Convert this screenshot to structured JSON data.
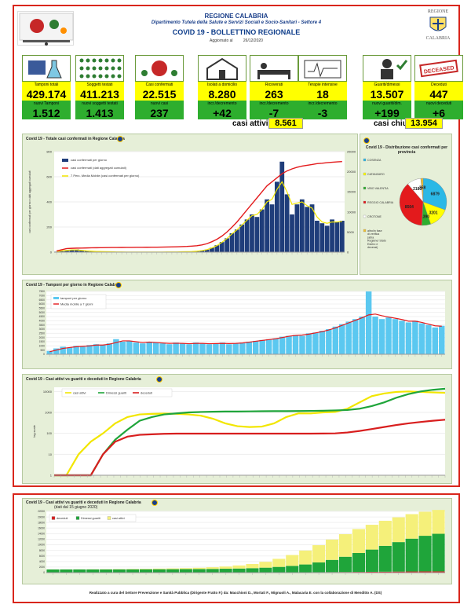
{
  "header": {
    "region": "REGIONE CALABRIA",
    "department": "Dipartimento Tutela della Salute e Servizi Sociali e Socio-Sanitari - Settore 4",
    "bulletin": "COVID 19 - BOLLETTINO REGIONALE",
    "updated_label": "Aggiornato al",
    "updated_date": "26/12/2020",
    "logo_top": "REGIONE",
    "logo_bottom": "CALABRIA"
  },
  "tiles": [
    {
      "label": "Tamponi totali",
      "value": "429.174",
      "sub_label": "nuovi Tamponi",
      "sub_value": "1.512",
      "icon": "lab-icon"
    },
    {
      "label": "Soggetti testati",
      "value": "411.213",
      "sub_label": "nuovi soggetti testati",
      "sub_value": "1.413",
      "icon": "people-grid-icon"
    },
    {
      "label": "Casi confermati",
      "value": "22.515",
      "sub_label": "nuovi casi",
      "sub_value": "237",
      "icon": "virus-people-icon"
    },
    {
      "label": "Isolati a domicilio",
      "value": "8.280",
      "sub_label": "incr./decremento",
      "sub_value": "+42",
      "icon": "house-icon"
    },
    {
      "label": "Ricoverati",
      "value": "263",
      "sub_label": "incr./decremento",
      "sub_value": "-7",
      "icon": "hospital-bed-icon"
    },
    {
      "label": "Terapie intensive",
      "value": "18",
      "sub_label": "incr./decremento",
      "sub_value": "-3",
      "icon": "icu-icon"
    },
    {
      "label": "Guariti/dimessi",
      "value": "13.507",
      "sub_label": "nuovi guariti/dim.",
      "sub_value": "+199",
      "icon": "recovered-icon"
    },
    {
      "label": "Deceduti",
      "value": "447",
      "sub_label": "nuovi deceduti",
      "sub_value": "+6",
      "icon": "deceased-stamp-icon",
      "stamp": "DECEASED"
    }
  ],
  "summary": {
    "active_label": "casi attivi",
    "active_value": "8.561",
    "closed_label": "casi chiusi",
    "closed_value": "13.954"
  },
  "colors": {
    "bar_blue": "#1f3d7a",
    "line_red": "#e31a1c",
    "line_yellow": "#f2e600",
    "test_bar": "#5bc8f0",
    "recovered_green": "#1fa53a",
    "deceased_red": "#d81e1e",
    "active_yellow": "#f5f07a",
    "frame_red": "#d9261c"
  },
  "chart_data": [
    {
      "type": "bar",
      "title": "Covid 19 - Totale casi confermati in Regione Calabria",
      "series": [
        {
          "name": "casi confermati per giorno",
          "kind": "bar",
          "color": "#1f3d7a",
          "values": [
            4,
            8,
            12,
            18,
            22,
            15,
            10,
            8,
            6,
            5,
            4,
            3,
            2,
            2,
            1,
            1,
            1,
            1,
            2,
            1,
            1,
            1,
            2,
            3,
            2,
            3,
            4,
            5,
            8,
            12,
            20,
            35,
            55,
            80,
            110,
            150,
            180,
            220,
            260,
            300,
            280,
            340,
            420,
            380,
            560,
            720,
            460,
            300,
            380,
            420,
            360,
            380,
            250,
            230,
            210,
            260,
            240,
            250
          ]
        },
        {
          "name": "casi confermati (dati aggregati cumulati)",
          "kind": "line",
          "color": "#e31a1c",
          "values": [
            300,
            600,
            900,
            950,
            1000,
            1020,
            1050,
            1080,
            1100,
            1120,
            1140,
            1150,
            1160,
            1170,
            1180,
            1190,
            1200,
            1210,
            1220,
            1230,
            1240,
            1260,
            1280,
            1300,
            1340,
            1380,
            1420,
            1500,
            1600,
            1800,
            2100,
            2600,
            3200,
            4000,
            5000,
            6200,
            7500,
            9000,
            10500,
            12000,
            13500,
            15000,
            16500,
            17500,
            18500,
            19500,
            20200,
            20700,
            21100,
            21400,
            21600,
            21800,
            22000,
            22100,
            22250,
            22350,
            22450,
            22515
          ]
        },
        {
          "name": "7 Perc. Media Mobile (casi confermati per giorno)",
          "kind": "line",
          "color": "#f2e600",
          "values": [
            6,
            10,
            14,
            18,
            18,
            14,
            10,
            8,
            6,
            5,
            4,
            3,
            2,
            2,
            1,
            1,
            1,
            1,
            1,
            1,
            1,
            1,
            2,
            2,
            2,
            3,
            4,
            5,
            8,
            12,
            20,
            34,
            52,
            78,
            108,
            146,
            178,
            216,
            254,
            290,
            300,
            340,
            400,
            420,
            500,
            560,
            480,
            380,
            390,
            400,
            370,
            350,
            280,
            240,
            230,
            240,
            240,
            245
          ]
        }
      ],
      "y_left_ticks": [
        "0",
        "200",
        "400",
        "600",
        "800"
      ],
      "y_right_ticks": [
        "0",
        "5000",
        "10000",
        "15000",
        "20000",
        "25000"
      ],
      "ylabel": "casi confermati per giorno e dati aggregati cumulati"
    },
    {
      "type": "pie",
      "title": "Covid 19 - Distribuzione casi confermati per provincia",
      "slices": [
        {
          "name": "COSENZA",
          "value": 6879,
          "color": "#2bb8e6"
        },
        {
          "name": "CATANZARO",
          "value": 3201,
          "color": "#ffff00"
        },
        {
          "name": "VIBO VALENTIA",
          "value": 1390,
          "color": "#2eae2e"
        },
        {
          "name": "REGGIO CALABRIA",
          "value": 8504,
          "color": "#e31a1c"
        },
        {
          "name": "CROTONE",
          "value": 2183,
          "color": "#ffffff"
        },
        {
          "name": "altro/in fase di verifica (altra Regione/ Stato Estero e decessi)",
          "value": 358,
          "color": "#f0c030"
        }
      ]
    },
    {
      "type": "bar",
      "title": "Covid 19 - Tamponi per giorno in Regione Calabria",
      "series": [
        {
          "name": "tamponi per giorno",
          "kind": "bar",
          "color": "#5bc8f0",
          "values": [
            400,
            700,
            900,
            800,
            1000,
            900,
            1100,
            1200,
            1100,
            1300,
            1800,
            1500,
            1600,
            1400,
            1300,
            1500,
            1400,
            1300,
            1200,
            1400,
            1300,
            1200,
            1400,
            1300,
            1200,
            1300,
            1400,
            1200,
            1300,
            1400,
            1500,
            1600,
            1700,
            1800,
            1900,
            2100,
            2200,
            2300,
            2200,
            2500,
            2600,
            2800,
            3000,
            3300,
            3600,
            3900,
            4200,
            4500,
            7500,
            4500,
            4200,
            4400,
            4200,
            4000,
            3800,
            4000,
            3700,
            3500,
            3200,
            3400
          ]
        },
        {
          "name": "Media mobile a 7 giorni",
          "kind": "line",
          "color": "#e31a1c",
          "values": [
            300,
            500,
            700,
            800,
            900,
            950,
            1000,
            1100,
            1100,
            1200,
            1400,
            1600,
            1600,
            1500,
            1400,
            1450,
            1400,
            1350,
            1300,
            1320,
            1300,
            1260,
            1300,
            1300,
            1260,
            1280,
            1300,
            1280,
            1300,
            1350,
            1450,
            1550,
            1650,
            1750,
            1850,
            2000,
            2150,
            2250,
            2300,
            2400,
            2550,
            2700,
            2900,
            3150,
            3450,
            3750,
            4050,
            4350,
            4700,
            4800,
            4600,
            4450,
            4300,
            4150,
            3950,
            3950,
            3800,
            3600,
            3400,
            3350
          ]
        }
      ],
      "y_ticks": [
        "0",
        "500",
        "1000",
        "1500",
        "2000",
        "2500",
        "3000",
        "3500",
        "4000",
        "4500",
        "5000",
        "5500",
        "6000",
        "6500",
        "7000",
        "7500"
      ]
    },
    {
      "type": "line",
      "title": "Covid 19 - Casi attivi vs guariti e deceduti in Regione Calabria",
      "ylabel": "log scale",
      "y_ticks": [
        "1",
        "10",
        "100",
        "1000",
        "10000"
      ],
      "log_scale": true,
      "series": [
        {
          "name": "casi attivi",
          "color": "#f2e600",
          "values": [
            1,
            1,
            10,
            40,
            100,
            300,
            600,
            800,
            850,
            880,
            860,
            800,
            700,
            500,
            300,
            220,
            200,
            210,
            300,
            600,
            900,
            900,
            1000,
            1050,
            1500,
            3000,
            6000,
            8000,
            9500,
            10000,
            9500,
            9000,
            8600
          ]
        },
        {
          "name": "Dimessi guariti",
          "color": "#1fa53a",
          "values": [
            1,
            1,
            1,
            1,
            10,
            50,
            150,
            400,
            600,
            800,
            900,
            1000,
            1050,
            1080,
            1100,
            1100,
            1120,
            1140,
            1150,
            1150,
            1160,
            1180,
            1200,
            1250,
            1300,
            1500,
            2000,
            3000,
            5000,
            7500,
            10000,
            12000,
            13507
          ]
        },
        {
          "name": "deceduti",
          "color": "#d81e1e",
          "values": [
            1,
            1,
            1,
            1,
            10,
            40,
            70,
            85,
            90,
            95,
            97,
            97,
            97,
            97,
            97,
            97,
            97,
            97,
            97,
            97,
            97,
            97,
            98,
            100,
            110,
            130,
            160,
            200,
            250,
            300,
            350,
            400,
            447
          ]
        }
      ]
    },
    {
      "type": "area",
      "title": "Covid 19 - Casi attivi vs guariti e deceduti in Regione Calabria",
      "subtitle": "(dati dal 15 giugno 2020)",
      "series": [
        {
          "name": "deceduti",
          "color": "#d81e1e",
          "values": [
            97,
            97,
            97,
            97,
            97,
            97,
            97,
            97,
            97,
            97,
            98,
            98,
            99,
            100,
            102,
            105,
            110,
            118,
            128,
            140,
            160,
            185,
            215,
            250,
            290,
            330,
            370,
            410,
            440,
            447
          ]
        },
        {
          "name": "Dimessi guariti",
          "color": "#1fa53a",
          "values": [
            1060,
            1070,
            1080,
            1090,
            1100,
            1110,
            1120,
            1130,
            1140,
            1150,
            1170,
            1200,
            1240,
            1300,
            1380,
            1500,
            1680,
            1950,
            2300,
            2800,
            3500,
            4400,
            5500,
            6800,
            8000,
            9300,
            10600,
            11800,
            12800,
            13507
          ]
        },
        {
          "name": "casi attivi",
          "color": "#f5f07a",
          "values": [
            30,
            30,
            40,
            60,
            80,
            100,
            130,
            170,
            220,
            280,
            350,
            450,
            600,
            800,
            1100,
            1500,
            2100,
            2900,
            3900,
            5000,
            6200,
            7300,
            8100,
            8600,
            8900,
            9000,
            8900,
            8800,
            8650,
            8561
          ]
        }
      ],
      "y_ticks": [
        "0",
        "2000",
        "4000",
        "6000",
        "8000",
        "10000",
        "12000",
        "14000",
        "16000",
        "18000",
        "20000",
        "22000"
      ]
    }
  ],
  "footer": {
    "credits": "Realizzato a cura del Settore Prevenzione e Sanità Pubblica (Dirigente Fratto F.) da: Macchioni D., Mortati F., Mignuoli A., Malacaria E. con la collaborazione di Menditto A. (DS)"
  }
}
